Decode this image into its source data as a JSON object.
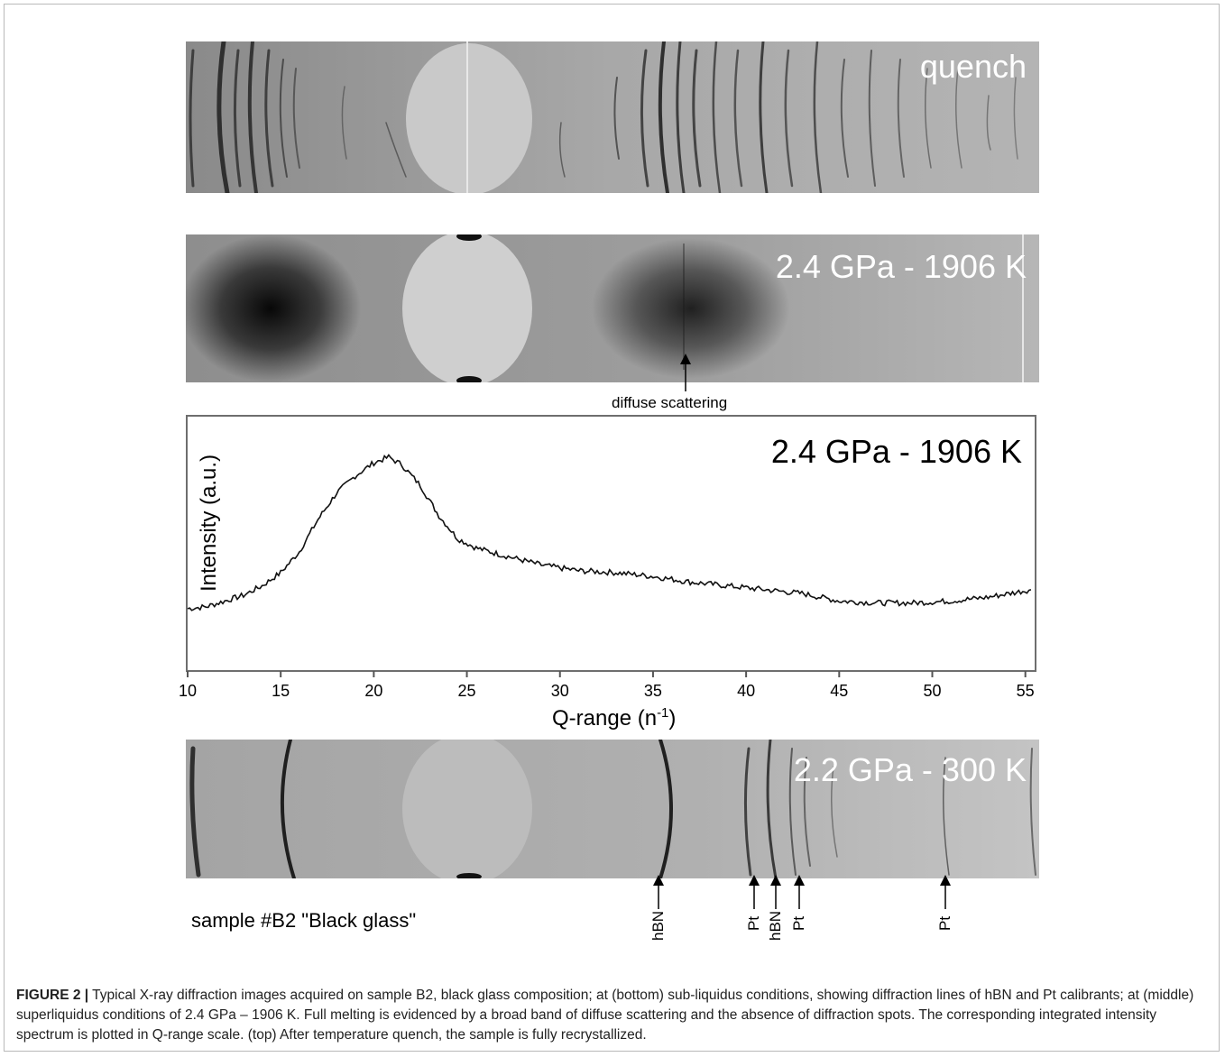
{
  "panels": {
    "top_label": "quench",
    "middle_label": "2.4 GPa - 1906 K",
    "middle_annotation": "diffuse scattering",
    "bottom_label": "2.2 GPa - 300 K",
    "sample_label": "sample #B2 \"Black glass\"",
    "bottom_markers": [
      "hBN",
      "Pt",
      "hBN",
      "Pt",
      "Pt"
    ]
  },
  "chart_data": {
    "type": "line",
    "title": "2.4 GPa - 1906 K",
    "xlabel": "Q-range (n",
    "xlabel_sup": "-1",
    "xlabel_close": ")",
    "ylabel": "Intensity (a.u.)",
    "xlim": [
      10,
      55.5
    ],
    "ylim": [
      0,
      1
    ],
    "xticks": [
      10,
      15,
      20,
      25,
      30,
      35,
      40,
      45,
      50,
      55
    ],
    "series": [
      {
        "x": [
          10,
          11,
          12,
          13,
          14,
          15,
          16,
          17,
          18,
          19,
          20,
          20.8,
          21.5,
          22.5,
          23.5,
          24.5,
          25.5,
          27,
          29,
          31,
          33,
          35,
          37,
          39,
          41,
          43,
          45,
          47,
          49,
          51,
          53,
          55.3
        ],
        "y": [
          0.12,
          0.13,
          0.16,
          0.19,
          0.24,
          0.31,
          0.42,
          0.59,
          0.73,
          0.82,
          0.89,
          0.92,
          0.88,
          0.77,
          0.61,
          0.49,
          0.44,
          0.4,
          0.35,
          0.32,
          0.31,
          0.29,
          0.26,
          0.24,
          0.22,
          0.2,
          0.16,
          0.15,
          0.15,
          0.16,
          0.18,
          0.22
        ]
      }
    ]
  },
  "caption": {
    "lead": "FIGURE 2 |",
    "text": " Typical X-ray diffraction images acquired on sample B2, black glass composition; at (bottom) sub-liquidus conditions, showing diffraction lines of hBN and Pt calibrants; at (middle) superliquidus conditions of 2.4 GPa – 1906 K. Full melting is evidenced by a broad band of diffuse scattering and the absence of diffraction spots. The corresponding integrated intensity spectrum is plotted in Q-range scale. (top) After temperature quench, the sample is fully recrystallized."
  }
}
